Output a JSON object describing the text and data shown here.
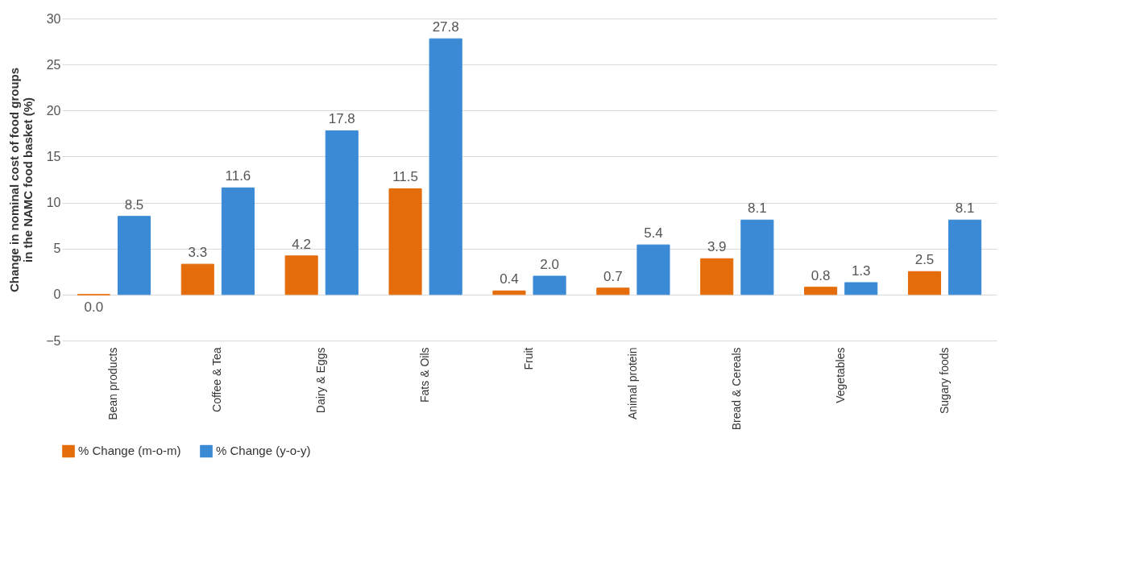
{
  "chart_data": {
    "type": "bar",
    "ylabel": "Change in nominal cost of food groups in the NAMC food basket (%)",
    "categories": [
      "Bean products",
      "Coffee & Tea",
      "Dairy & Eggs",
      "Fats & Oils",
      "Fruit",
      "Animal protein",
      "Bread & Cereals",
      "Vegetables",
      "Sugary foods"
    ],
    "series": [
      {
        "name": "% Change (m-o-m)",
        "color": "#e46c0a",
        "values": [
          -0.04,
          3.3,
          4.2,
          11.5,
          0.4,
          0.7,
          3.9,
          0.8,
          2.5
        ],
        "value_labels": [
          "0.0",
          "3.3",
          "4.2",
          "11.5",
          "0.4",
          "0.7",
          "3.9",
          "0.8",
          "2.5"
        ]
      },
      {
        "name": "% Change (y-o-y)",
        "color": "#3a8ad6",
        "values": [
          8.5,
          11.6,
          17.8,
          27.8,
          2.0,
          5.4,
          8.1,
          1.3,
          8.1
        ],
        "value_labels": [
          "8.5",
          "11.6",
          "17.8",
          "27.8",
          "2.0",
          "5.4",
          "8.1",
          "1.3",
          "8.1"
        ]
      }
    ],
    "ylim": [
      -5,
      30
    ],
    "yticks": [
      -5,
      0,
      5,
      10,
      15,
      20,
      25,
      30
    ],
    "grid": "y",
    "legend": "bottom"
  }
}
